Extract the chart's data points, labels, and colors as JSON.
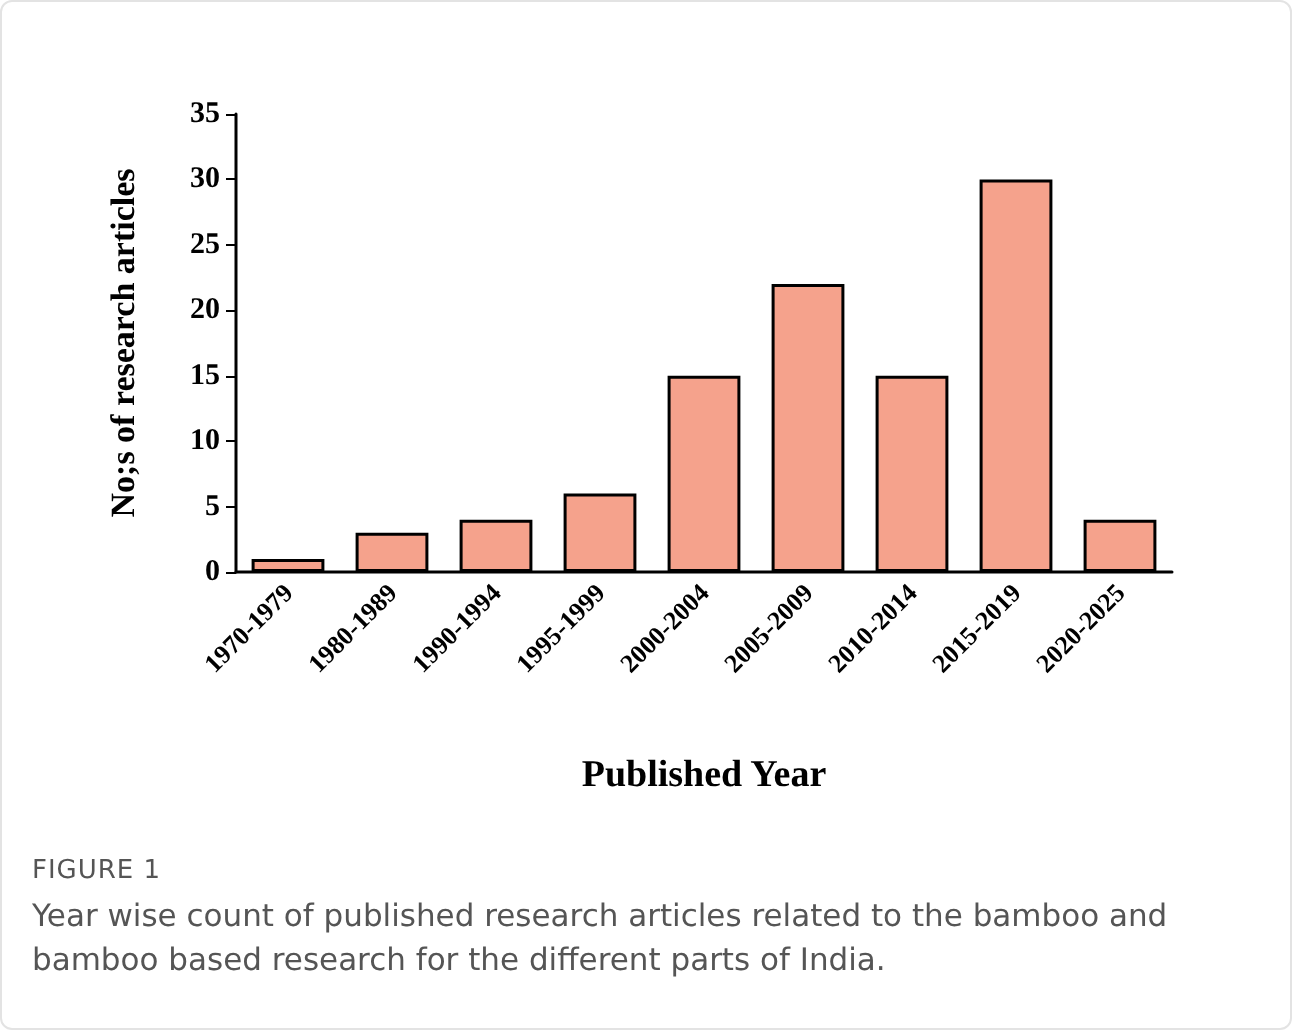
{
  "chart_data": {
    "type": "bar",
    "xlabel": "Published Year",
    "ylabel": "No;s of research articles",
    "categories": [
      "1970-1979",
      "1980-1989",
      "1990-1994",
      "1995-1999",
      "2000-2004",
      "2005-2009",
      "2010-2014",
      "2015-2019",
      "2020-2025"
    ],
    "values": [
      1,
      3,
      4,
      6,
      15,
      22,
      15,
      30,
      4
    ],
    "color": "#f5a28c",
    "ylim": [
      0,
      35
    ],
    "yticks": [
      0,
      5,
      10,
      15,
      20,
      25,
      30,
      35
    ],
    "grid": false,
    "annotations": [
      "FIGURE 1",
      "Year wise count of published research articles related to the bamboo and bamboo based research for the different parts of India."
    ]
  }
}
